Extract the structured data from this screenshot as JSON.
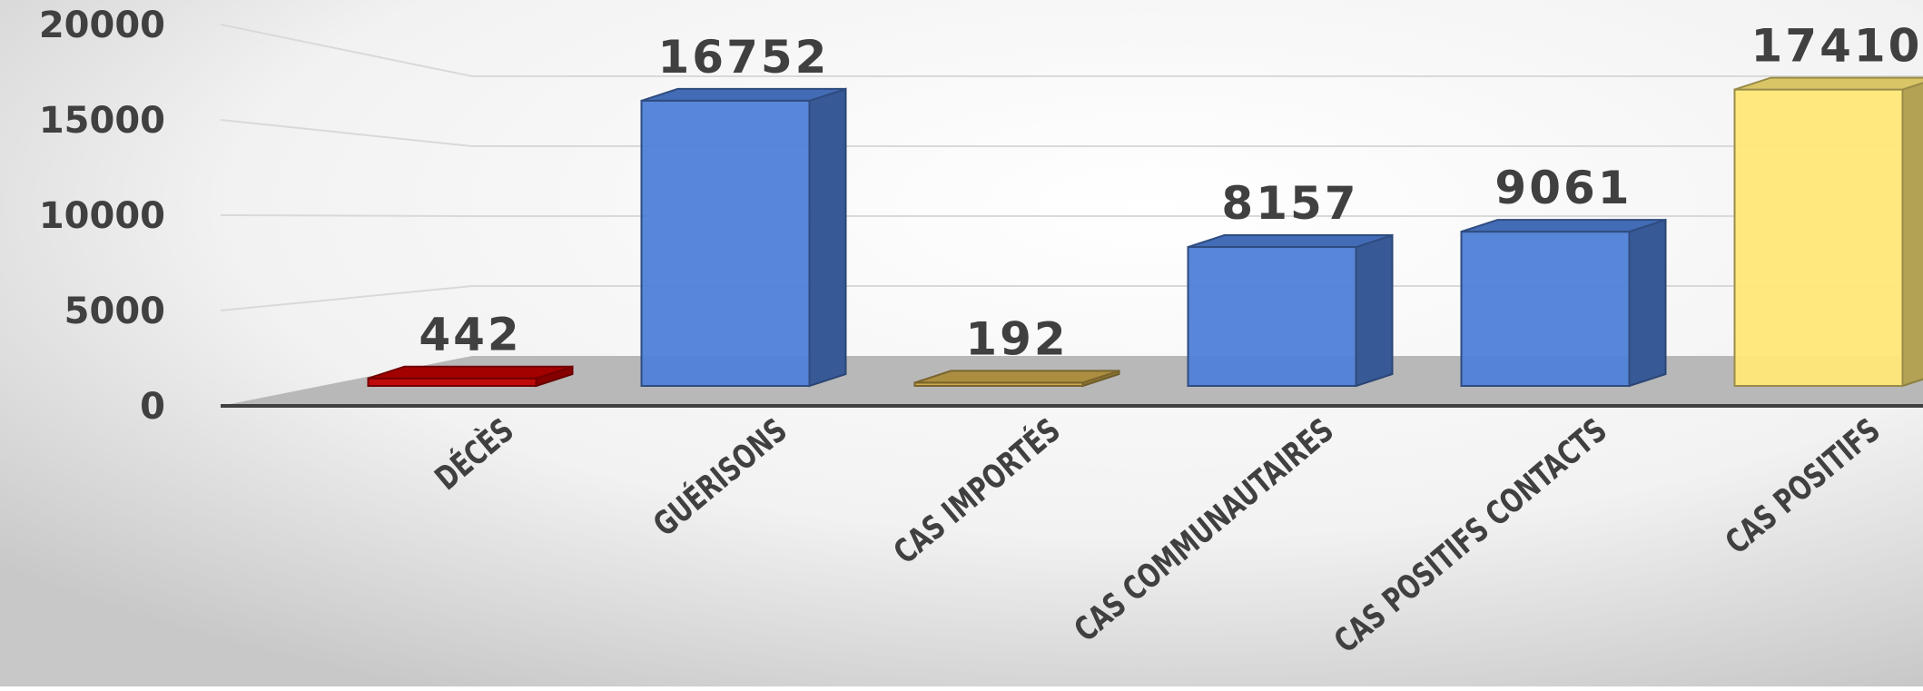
{
  "chart_data": {
    "type": "bar3d",
    "categories": [
      "DÉCÈS",
      "GUÉRISONS",
      "CAS IMPORTÉS",
      "CAS COMMUNAUTAIRES",
      "CAS POSITIFS CONTACTS",
      "CAS POSITIFS"
    ],
    "values": [
      442,
      16752,
      192,
      8157,
      9061,
      17410
    ],
    "colors": [
      "#c00000",
      "#4f7fd6",
      "#c9a74a",
      "#4f7fd6",
      "#4f7fd6",
      "#ffe878"
    ],
    "ylim": [
      0,
      20000
    ],
    "yticks": [
      0,
      5000,
      10000,
      15000,
      20000
    ],
    "grid": true
  }
}
